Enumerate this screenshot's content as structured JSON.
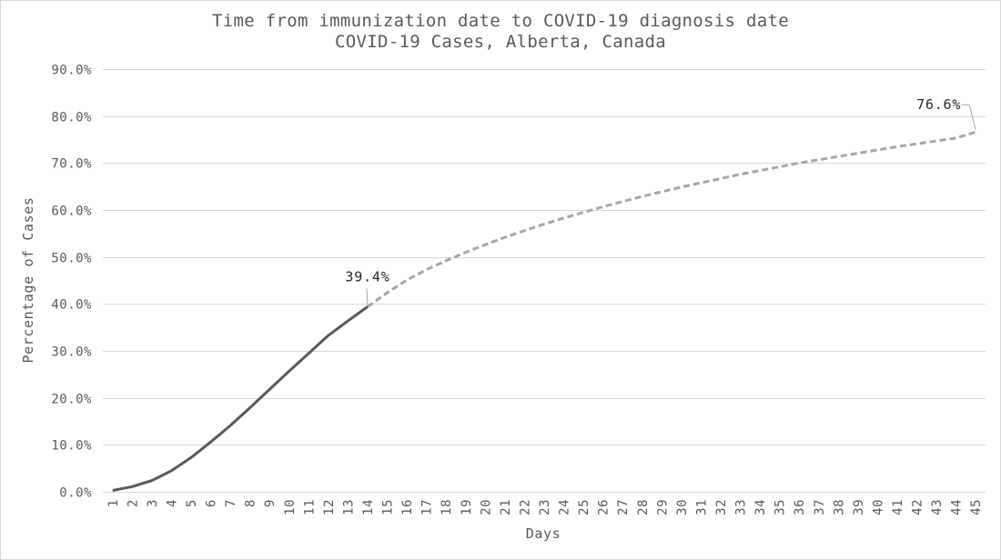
{
  "chart_data": {
    "type": "line",
    "title": "Time from immunization date to COVID-19 diagnosis date",
    "subtitle": "COVID-19 Cases, Alberta, Canada",
    "xlabel": "Days",
    "ylabel": "Percentage of Cases",
    "ylim": [
      0,
      90
    ],
    "y_ticks": [
      "0.0%",
      "10.0%",
      "20.0%",
      "30.0%",
      "40.0%",
      "50.0%",
      "60.0%",
      "70.0%",
      "80.0%",
      "90.0%"
    ],
    "x": [
      1,
      2,
      3,
      4,
      5,
      6,
      7,
      8,
      9,
      10,
      11,
      12,
      13,
      14,
      15,
      16,
      17,
      18,
      19,
      20,
      21,
      22,
      23,
      24,
      25,
      26,
      27,
      28,
      29,
      30,
      31,
      32,
      33,
      34,
      35,
      36,
      37,
      38,
      39,
      40,
      41,
      42,
      43,
      44,
      45
    ],
    "grid": true,
    "legend": "none",
    "series": [
      {
        "style": "solid",
        "color": "#595959",
        "x": [
          1,
          2,
          3,
          4,
          5,
          6,
          7,
          8,
          9,
          10,
          11,
          12,
          13,
          14
        ],
        "values": [
          0.3,
          1.1,
          2.4,
          4.5,
          7.3,
          10.6,
          14.1,
          17.9,
          21.8,
          25.7,
          29.5,
          33.3,
          36.4,
          39.4
        ]
      },
      {
        "style": "dashed",
        "color": "#a6a6a6",
        "x": [
          14,
          15,
          16,
          17,
          18,
          19,
          20,
          21,
          22,
          23,
          24,
          25,
          26,
          27,
          28,
          29,
          30,
          31,
          32,
          33,
          34,
          35,
          36,
          37,
          38,
          39,
          40,
          41,
          42,
          43,
          44,
          45
        ],
        "values": [
          39.4,
          42.4,
          45.1,
          47.3,
          49.2,
          51.0,
          52.6,
          54.2,
          55.6,
          57.0,
          58.3,
          59.5,
          60.7,
          61.8,
          62.9,
          63.9,
          64.9,
          65.8,
          66.7,
          67.6,
          68.4,
          69.2,
          70.0,
          70.7,
          71.4,
          72.1,
          72.8,
          73.5,
          74.1,
          74.7,
          75.3,
          76.6
        ]
      }
    ],
    "annotations": [
      {
        "x": 14,
        "y": 39.4,
        "text": "39.4%"
      },
      {
        "x": 45,
        "y": 76.6,
        "text": "76.6%"
      }
    ]
  }
}
